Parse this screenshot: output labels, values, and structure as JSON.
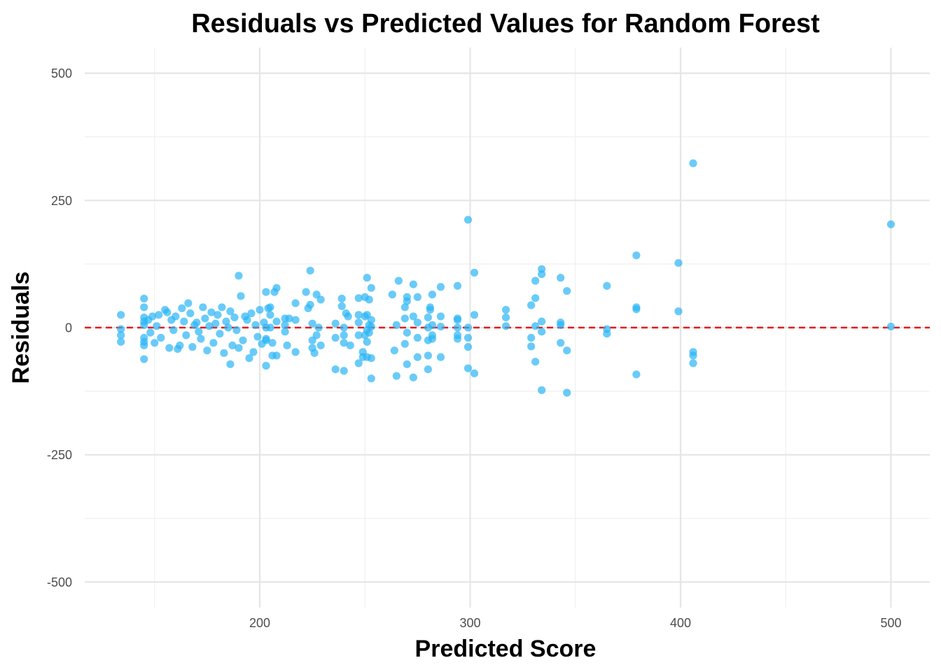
{
  "chart_data": {
    "type": "scatter",
    "title": "Residuals vs Predicted Values for Random Forest",
    "xlabel": "Predicted Score",
    "ylabel": "Residuals",
    "xlim": [
      125,
      515
    ],
    "ylim": [
      -550,
      550
    ],
    "x_ticks": [
      200,
      300,
      400,
      500
    ],
    "x_tick_labels": [
      "200",
      "300",
      "400",
      "500"
    ],
    "x_minor_ticks": [
      150,
      250,
      350,
      450
    ],
    "y_ticks": [
      500,
      250,
      0,
      -250,
      -500
    ],
    "y_tick_labels": [
      "500",
      "250",
      "0",
      "-250",
      "-500"
    ],
    "y_minor_ticks": [
      375,
      125,
      -125,
      -375
    ],
    "grid": true,
    "reference_line": {
      "y": 0,
      "color": "#e31a1c",
      "style": "dashed"
    },
    "point_color": "#2bb5f5",
    "point_opacity": 0.7,
    "points": [
      [
        134,
        25
      ],
      [
        134,
        -3
      ],
      [
        134,
        -15
      ],
      [
        134,
        -28
      ],
      [
        145,
        57
      ],
      [
        145,
        40
      ],
      [
        145,
        20
      ],
      [
        145,
        12
      ],
      [
        145,
        5
      ],
      [
        145,
        -20
      ],
      [
        145,
        -28
      ],
      [
        145,
        -35
      ],
      [
        145,
        -62
      ],
      [
        147,
        15
      ],
      [
        148,
        -10
      ],
      [
        149,
        22
      ],
      [
        150,
        -30
      ],
      [
        151,
        3
      ],
      [
        152,
        25
      ],
      [
        153,
        -20
      ],
      [
        155,
        35
      ],
      [
        156,
        30
      ],
      [
        157,
        -40
      ],
      [
        158,
        15
      ],
      [
        159,
        -5
      ],
      [
        160,
        22
      ],
      [
        161,
        -42
      ],
      [
        162,
        -35
      ],
      [
        163,
        38
      ],
      [
        164,
        12
      ],
      [
        165,
        -15
      ],
      [
        166,
        48
      ],
      [
        167,
        28
      ],
      [
        168,
        -38
      ],
      [
        169,
        5
      ],
      [
        170,
        10
      ],
      [
        171,
        -8
      ],
      [
        172,
        -22
      ],
      [
        173,
        40
      ],
      [
        174,
        18
      ],
      [
        175,
        -45
      ],
      [
        176,
        3
      ],
      [
        177,
        30
      ],
      [
        178,
        -30
      ],
      [
        179,
        8
      ],
      [
        180,
        25
      ],
      [
        181,
        -12
      ],
      [
        182,
        40
      ],
      [
        183,
        -50
      ],
      [
        184,
        12
      ],
      [
        185,
        0
      ],
      [
        186,
        32
      ],
      [
        187,
        -35
      ],
      [
        188,
        20
      ],
      [
        189,
        -5
      ],
      [
        190,
        -40
      ],
      [
        191,
        62
      ],
      [
        192,
        -25
      ],
      [
        193,
        22
      ],
      [
        194,
        15
      ],
      [
        195,
        -60
      ],
      [
        196,
        28
      ],
      [
        197,
        -48
      ],
      [
        198,
        5
      ],
      [
        199,
        -18
      ],
      [
        200,
        35
      ],
      [
        201,
        -32
      ],
      [
        202,
        10
      ],
      [
        203,
        -22
      ],
      [
        204,
        38
      ],
      [
        205,
        0
      ],
      [
        206,
        -55
      ],
      [
        190,
        102
      ],
      [
        186,
        -72
      ],
      [
        203,
        70
      ],
      [
        203,
        0
      ],
      [
        203,
        -25
      ],
      [
        203,
        -75
      ],
      [
        205,
        40
      ],
      [
        205,
        25
      ],
      [
        206,
        -30
      ],
      [
        207,
        70
      ],
      [
        208,
        78
      ],
      [
        208,
        12
      ],
      [
        208,
        -55
      ],
      [
        212,
        18
      ],
      [
        212,
        5
      ],
      [
        212,
        -8
      ],
      [
        213,
        -35
      ],
      [
        214,
        18
      ],
      [
        217,
        48
      ],
      [
        217,
        15
      ],
      [
        217,
        -48
      ],
      [
        222,
        70
      ],
      [
        223,
        38
      ],
      [
        224,
        45
      ],
      [
        224,
        112
      ],
      [
        225,
        -25
      ],
      [
        225,
        -40
      ],
      [
        226,
        -50
      ],
      [
        227,
        65
      ],
      [
        227,
        -15
      ],
      [
        228,
        0
      ],
      [
        229,
        55
      ],
      [
        229,
        -35
      ],
      [
        225,
        8
      ],
      [
        236,
        8
      ],
      [
        236,
        -20
      ],
      [
        236,
        -82
      ],
      [
        239,
        57
      ],
      [
        239,
        42
      ],
      [
        240,
        0
      ],
      [
        240,
        -15
      ],
      [
        240,
        -30
      ],
      [
        240,
        -85
      ],
      [
        241,
        28
      ],
      [
        242,
        22
      ],
      [
        243,
        -35
      ],
      [
        247,
        58
      ],
      [
        247,
        25
      ],
      [
        247,
        10
      ],
      [
        247,
        -15
      ],
      [
        247,
        -70
      ],
      [
        249,
        -48
      ],
      [
        249,
        -58
      ],
      [
        250,
        60
      ],
      [
        250,
        22
      ],
      [
        250,
        -15
      ],
      [
        251,
        98
      ],
      [
        251,
        25
      ],
      [
        251,
        -5
      ],
      [
        251,
        -28
      ],
      [
        251,
        -58
      ],
      [
        252,
        55
      ],
      [
        252,
        -10
      ],
      [
        253,
        78
      ],
      [
        253,
        15
      ],
      [
        253,
        -60
      ],
      [
        253,
        -100
      ],
      [
        252,
        5
      ],
      [
        253,
        2
      ],
      [
        263,
        65
      ],
      [
        264,
        -45
      ],
      [
        265,
        5
      ],
      [
        265,
        -95
      ],
      [
        266,
        92
      ],
      [
        269,
        40
      ],
      [
        269,
        18
      ],
      [
        269,
        -32
      ],
      [
        270,
        60
      ],
      [
        270,
        52
      ],
      [
        270,
        -10
      ],
      [
        270,
        -72
      ],
      [
        273,
        85
      ],
      [
        273,
        22
      ],
      [
        273,
        -98
      ],
      [
        275,
        60
      ],
      [
        275,
        10
      ],
      [
        275,
        -20
      ],
      [
        275,
        -58
      ],
      [
        280,
        20
      ],
      [
        280,
        0
      ],
      [
        280,
        -25
      ],
      [
        280,
        -55
      ],
      [
        280,
        -82
      ],
      [
        281,
        40
      ],
      [
        281,
        35
      ],
      [
        282,
        65
      ],
      [
        282,
        5
      ],
      [
        282,
        -15
      ],
      [
        282,
        -22
      ],
      [
        286,
        80
      ],
      [
        286,
        22
      ],
      [
        286,
        2
      ],
      [
        286,
        -58
      ],
      [
        294,
        82
      ],
      [
        294,
        18
      ],
      [
        294,
        15
      ],
      [
        294,
        0
      ],
      [
        294,
        -15
      ],
      [
        294,
        -22
      ],
      [
        299,
        212
      ],
      [
        299,
        0
      ],
      [
        299,
        -20
      ],
      [
        299,
        -38
      ],
      [
        299,
        -80
      ],
      [
        302,
        108
      ],
      [
        302,
        25
      ],
      [
        302,
        -90
      ],
      [
        317,
        35
      ],
      [
        317,
        20
      ],
      [
        317,
        3
      ],
      [
        329,
        44
      ],
      [
        329,
        -20
      ],
      [
        329,
        -37
      ],
      [
        331,
        92
      ],
      [
        331,
        58
      ],
      [
        331,
        3
      ],
      [
        331,
        -67
      ],
      [
        334,
        115
      ],
      [
        334,
        105
      ],
      [
        334,
        12
      ],
      [
        334,
        -8
      ],
      [
        334,
        -123
      ],
      [
        343,
        98
      ],
      [
        343,
        10
      ],
      [
        343,
        5
      ],
      [
        343,
        -30
      ],
      [
        346,
        72
      ],
      [
        346,
        -45
      ],
      [
        346,
        -128
      ],
      [
        365,
        82
      ],
      [
        365,
        -3
      ],
      [
        365,
        -12
      ],
      [
        379,
        142
      ],
      [
        379,
        40
      ],
      [
        379,
        36
      ],
      [
        379,
        -92
      ],
      [
        399,
        127
      ],
      [
        399,
        32
      ],
      [
        406,
        323
      ],
      [
        406,
        -48
      ],
      [
        406,
        -55
      ],
      [
        406,
        -70
      ],
      [
        500,
        203
      ],
      [
        500,
        2
      ]
    ]
  }
}
